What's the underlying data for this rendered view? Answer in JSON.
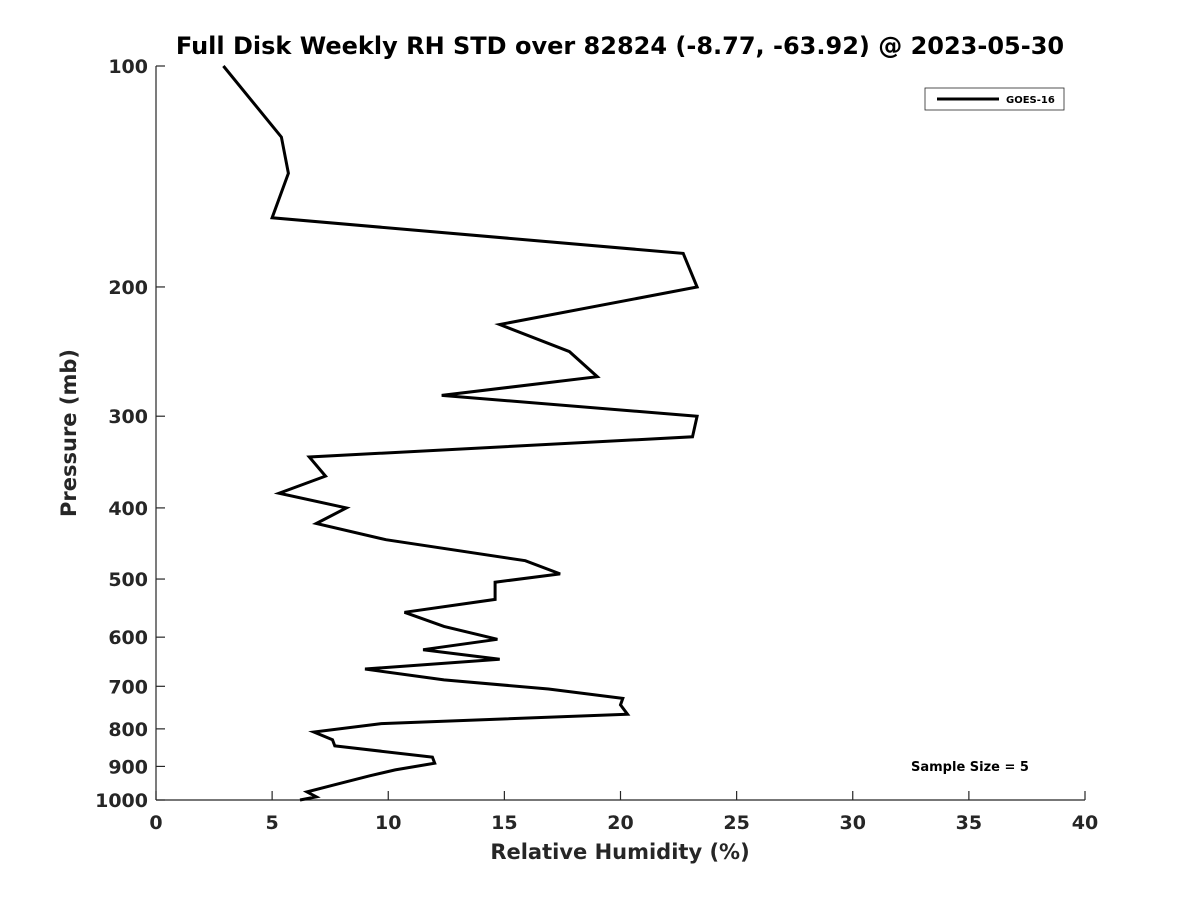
{
  "chart_data": {
    "type": "line",
    "title": "Full Disk Weekly RH STD over 82824 (-8.77, -63.92) @ 2023-05-30",
    "xlabel": "Relative Humidity (%)",
    "ylabel": "Pressure (mb)",
    "xlim": [
      0,
      40
    ],
    "ylim": [
      100,
      1000
    ],
    "y_scale": "log",
    "y_reversed": true,
    "x_ticks": [
      "0",
      "5",
      "10",
      "15",
      "20",
      "25",
      "30",
      "35",
      "40"
    ],
    "y_ticks": [
      "100",
      "200",
      "300",
      "400",
      "500",
      "600",
      "700",
      "800",
      "900",
      "1000"
    ],
    "legend_position": "top-right",
    "grid": false,
    "annotation": "Sample Size = 5",
    "series": [
      {
        "name": "GOES-16",
        "color": "#000000",
        "x": [
          2.9,
          5.4,
          5.7,
          5.0,
          22.7,
          23.3,
          14.8,
          17.8,
          19.0,
          12.3,
          23.3,
          23.1,
          6.6,
          7.3,
          5.3,
          8.2,
          6.9,
          9.9,
          15.9,
          17.4,
          14.6,
          14.6,
          10.7,
          12.4,
          14.7,
          11.5,
          14.8,
          9.0,
          12.4,
          16.9,
          20.1,
          20.0,
          20.3,
          9.7,
          6.8,
          7.6,
          7.7,
          11.9,
          12.0,
          10.3,
          9.2,
          7.6,
          6.5,
          6.9,
          6.2
        ],
        "y": [
          100,
          125,
          140,
          161,
          180,
          200,
          225,
          245,
          265,
          281,
          300,
          320,
          341,
          362,
          382,
          400,
          420,
          442,
          472,
          492,
          505,
          533,
          555,
          580,
          604,
          624,
          643,
          663,
          686,
          706,
          727,
          742,
          764,
          787,
          808,
          828,
          844,
          874,
          891,
          910,
          927,
          955,
          975,
          990,
          1005
        ]
      }
    ]
  }
}
